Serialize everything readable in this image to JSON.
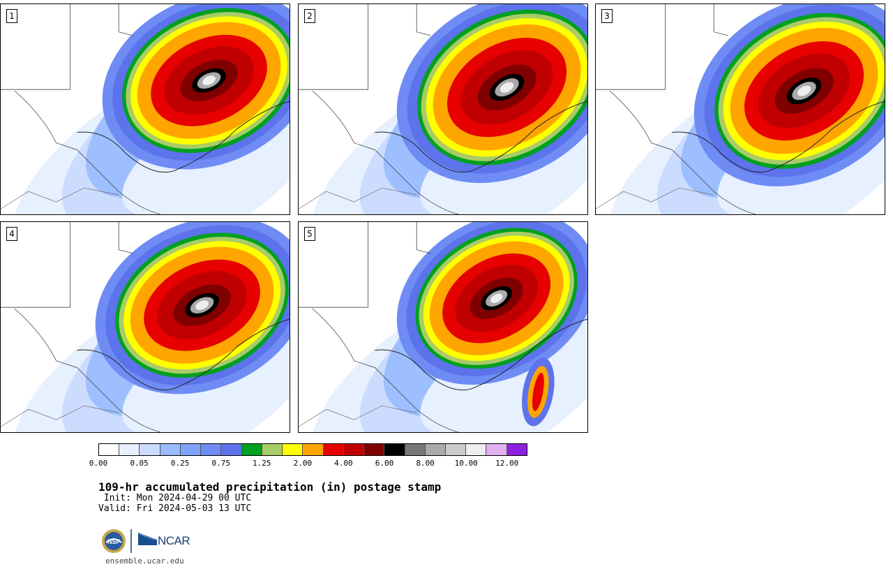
{
  "panels": [
    {
      "label": "1"
    },
    {
      "label": "2"
    },
    {
      "label": "3"
    },
    {
      "label": "4"
    },
    {
      "label": "5"
    }
  ],
  "colorbar": {
    "colors": [
      "#ffffff",
      "#e6f0ff",
      "#ccdcff",
      "#99bbff",
      "#7fa3ff",
      "#6f8cf5",
      "#5c73ec",
      "#00a020",
      "#aacc66",
      "#ffff00",
      "#ffa500",
      "#e60000",
      "#c00000",
      "#800000",
      "#000000",
      "#777777",
      "#aaaaaa",
      "#cccccc",
      "#eeeeee",
      "#e0b0f0",
      "#9020e0"
    ],
    "tick_labels": [
      "0.00",
      "0.05",
      "0.25",
      "0.75",
      "1.25",
      "2.00",
      "4.00",
      "6.00",
      "8.00",
      "10.00",
      "12.00"
    ]
  },
  "title": "109-hr accumulated precipitation (in) postage stamp",
  "init": " Init: Mon 2024-04-29 00 UTC",
  "valid": "Valid: Fri 2024-05-03 13 UTC",
  "logos": {
    "nsf_icon": "nsf-seal-icon",
    "ncar_text": "NCAR",
    "ncar_icon": "ncar-logo-icon"
  },
  "website": "ensemble.ucar.edu"
}
